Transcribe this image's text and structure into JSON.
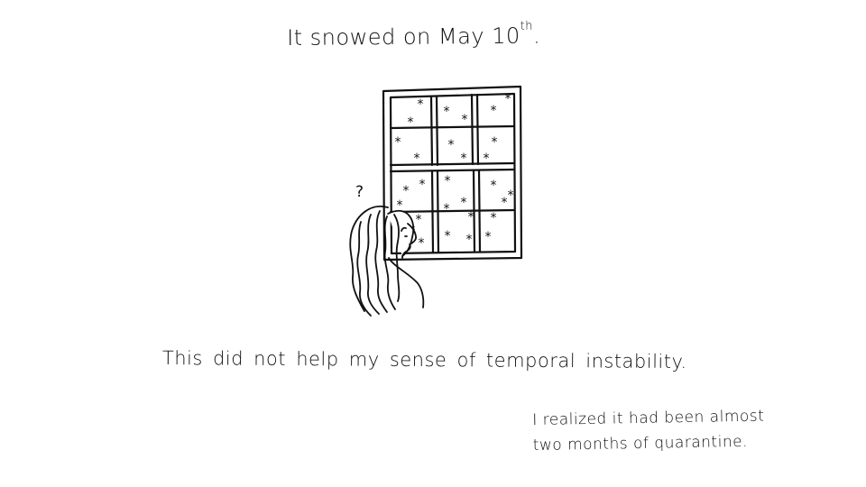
{
  "comic": {
    "title_text": "It snowed on May 10",
    "title_suffix": "th",
    "title_period": ".",
    "question_mark": "?",
    "caption_main": "This did not help my sense of temporal instability.",
    "caption_side_line1": "I realized it had been almost",
    "caption_side_line2": "two months of quarantine."
  },
  "colors": {
    "background": "#ffffff",
    "ink": "#111111"
  },
  "icons": {
    "window": "window-icon",
    "snowflake": "snowflake-icon",
    "person": "woman-looking-out-window-icon"
  }
}
